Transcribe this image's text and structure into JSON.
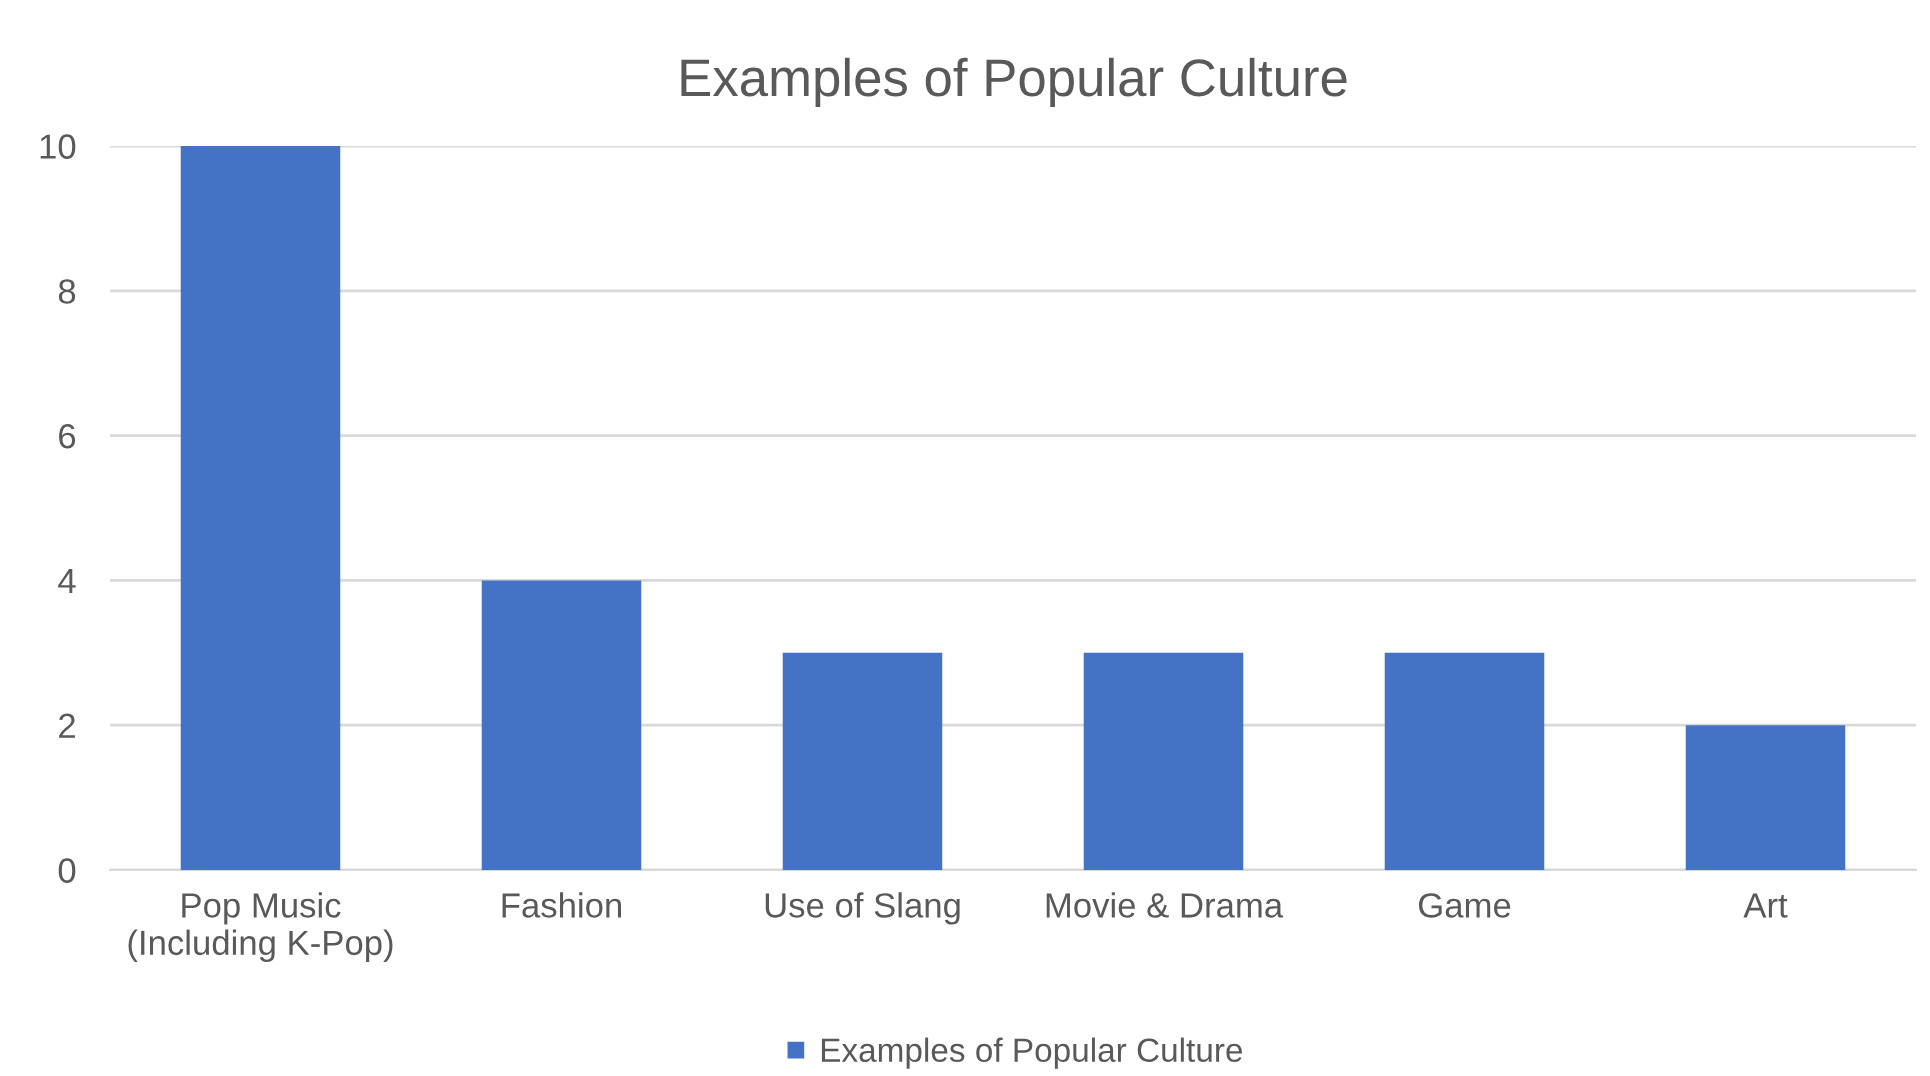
{
  "chart_data": {
    "type": "bar",
    "title": "Examples of Popular Culture",
    "categories": [
      "Pop Music\n(Including K-Pop)",
      "Fashion",
      "Use of Slang",
      "Movie & Drama",
      "Game",
      "Art"
    ],
    "series": [
      {
        "name": "Examples of Popular Culture",
        "color": "#4472c4",
        "values": [
          10,
          4,
          3,
          3,
          3,
          2
        ]
      }
    ],
    "ylim": [
      0,
      10
    ],
    "yticks": [
      0,
      2,
      4,
      6,
      8,
      10
    ],
    "grid": "y",
    "legend": "bottom"
  }
}
